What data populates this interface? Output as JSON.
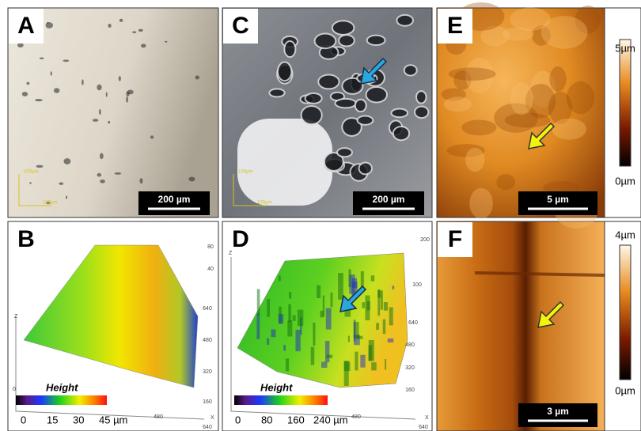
{
  "panels": [
    {
      "label": "A",
      "scale_bar": "200 µm",
      "inset_labels": [
        "100µm",
        "100µm"
      ]
    },
    {
      "label": "C",
      "scale_bar": "200 µm",
      "inset_labels": [
        "100µm",
        "100µm"
      ]
    },
    {
      "label": "E",
      "scale_bar": "5 µm",
      "colorbar": [
        "5µm",
        "0µm"
      ]
    },
    {
      "label": "B",
      "legend_title": "Height",
      "legend_ticks": [
        "0",
        "15",
        "30",
        "45 µm"
      ],
      "axis_ticks": [
        "80",
        "40",
        "640",
        "480",
        "320",
        "160",
        "0",
        "480",
        "640"
      ],
      "axis_letters": [
        "Z",
        "X"
      ]
    },
    {
      "label": "D",
      "legend_title": "Height",
      "legend_ticks": [
        "0",
        "80",
        "160",
        "240 µm"
      ],
      "axis_ticks": [
        "200",
        "100",
        "640",
        "480",
        "320",
        "160",
        "480",
        "640"
      ],
      "axis_letters": [
        "Z",
        "X"
      ]
    },
    {
      "label": "F",
      "scale_bar": "3 µm",
      "colorbar": [
        "4µm",
        "0µm"
      ]
    }
  ]
}
